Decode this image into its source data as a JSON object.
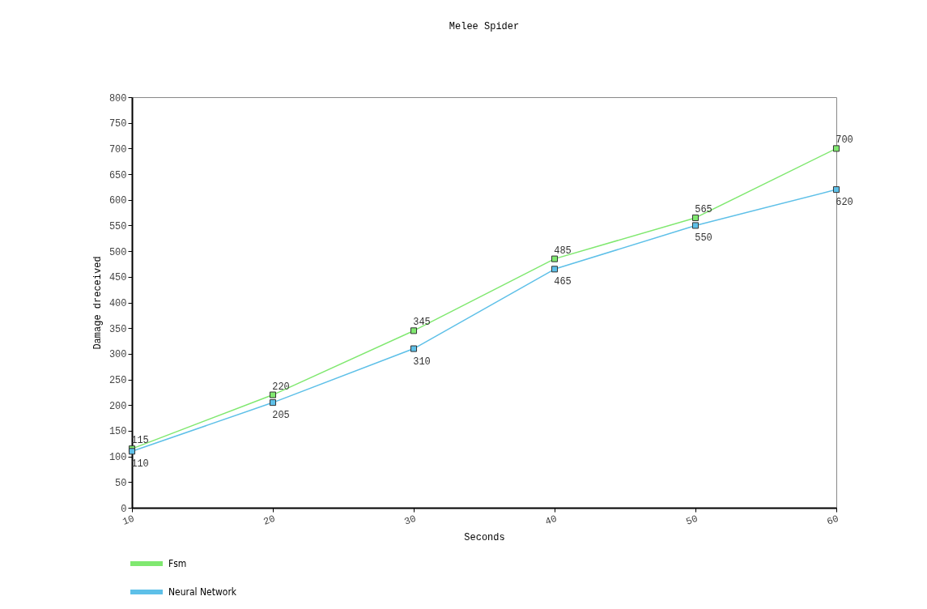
{
  "chart_data": {
    "type": "line",
    "title": "Melee Spider",
    "xlabel": "Seconds",
    "ylabel": "Damage dreceived",
    "x": [
      10,
      20,
      30,
      40,
      50,
      60
    ],
    "series": [
      {
        "name": "Fsm",
        "color": "#80e870",
        "values": [
          115,
          220,
          345,
          485,
          565,
          700
        ]
      },
      {
        "name": "Neural Network",
        "color": "#5ec0e8",
        "values": [
          110,
          205,
          310,
          465,
          550,
          620
        ]
      }
    ],
    "xlim": [
      10,
      60
    ],
    "xticks": [
      10,
      20,
      30,
      40,
      50,
      60
    ],
    "ylim": [
      0,
      800
    ],
    "yticks": [
      0,
      50,
      100,
      150,
      200,
      250,
      300,
      350,
      400,
      450,
      500,
      550,
      600,
      650,
      700,
      750,
      800
    ],
    "grid": false,
    "legend": "bottom left",
    "marker": "square",
    "line_style": "solid",
    "data_labels": true
  }
}
